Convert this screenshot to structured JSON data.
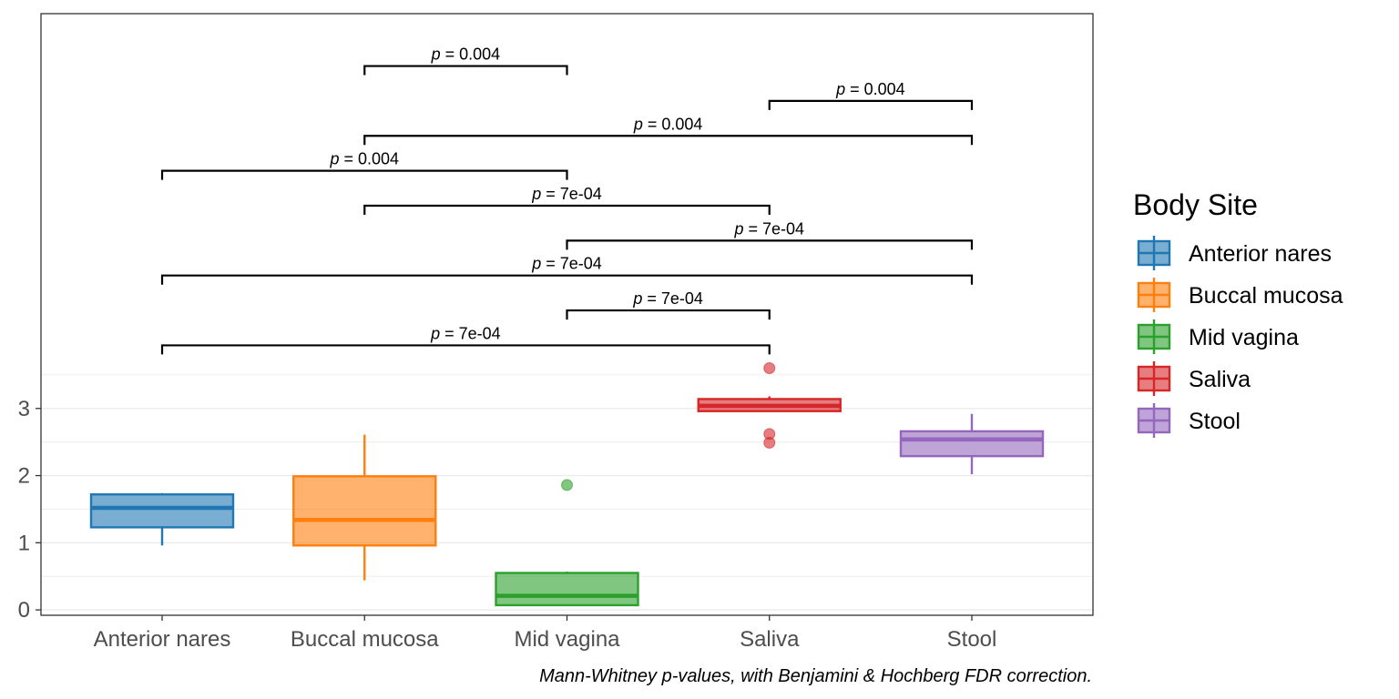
{
  "chart_data": {
    "type": "box",
    "categories": [
      "Anterior nares",
      "Buccal mucosa",
      "Mid vagina",
      "Saliva",
      "Stool"
    ],
    "colors": [
      "#1f77b4",
      "#ff7f0e",
      "#2ca02c",
      "#d62728",
      "#9467bd"
    ],
    "boxes": [
      {
        "category": "Anterior nares",
        "whisker_low": 0.96,
        "q1": 1.23,
        "median": 1.52,
        "q3": 1.72,
        "whisker_high": 1.74,
        "outliers": []
      },
      {
        "category": "Buccal mucosa",
        "whisker_low": 0.44,
        "q1": 0.96,
        "median": 1.34,
        "q3": 1.99,
        "whisker_high": 2.61,
        "outliers": []
      },
      {
        "category": "Mid vagina",
        "whisker_low": 0.07,
        "q1": 0.07,
        "median": 0.21,
        "q3": 0.55,
        "whisker_high": 0.57,
        "outliers": [
          1.86
        ]
      },
      {
        "category": "Saliva",
        "whisker_low": 2.96,
        "q1": 2.96,
        "median": 3.04,
        "q3": 3.14,
        "whisker_high": 3.18,
        "outliers": [
          3.6,
          2.62,
          2.49
        ]
      },
      {
        "category": "Stool",
        "whisker_low": 2.02,
        "q1": 2.29,
        "median": 2.54,
        "q3": 2.66,
        "whisker_high": 2.92,
        "outliers": []
      }
    ],
    "y_ticks": [
      "0",
      "1",
      "2",
      "3"
    ],
    "ylim": [
      -0.08,
      8.88
    ],
    "grid": true,
    "comparisons": [
      {
        "from": "Buccal mucosa",
        "to": "Mid vagina",
        "p": "= 0.004",
        "y": 8.1
      },
      {
        "from": "Saliva",
        "to": "Stool",
        "p": "= 0.004",
        "y": 7.58
      },
      {
        "from": "Buccal mucosa",
        "to": "Stool",
        "p": "= 0.004",
        "y": 7.06
      },
      {
        "from": "Anterior nares",
        "to": "Mid vagina",
        "p": "= 0.004",
        "y": 6.54
      },
      {
        "from": "Buccal mucosa",
        "to": "Saliva",
        "p": "= 7e-04",
        "y": 6.02
      },
      {
        "from": "Mid vagina",
        "to": "Stool",
        "p": "= 7e-04",
        "y": 5.5
      },
      {
        "from": "Anterior nares",
        "to": "Stool",
        "p": "= 7e-04",
        "y": 4.98
      },
      {
        "from": "Mid vagina",
        "to": "Saliva",
        "p": "= 7e-04",
        "y": 4.46
      },
      {
        "from": "Anterior nares",
        "to": "Saliva",
        "p": "= 7e-04",
        "y": 3.94
      }
    ],
    "p_symbol": "p",
    "legend": {
      "title": "Body Site",
      "position": "right"
    },
    "caption": "Mann-Whitney p-values, with Benjamini & Hochberg FDR correction."
  }
}
